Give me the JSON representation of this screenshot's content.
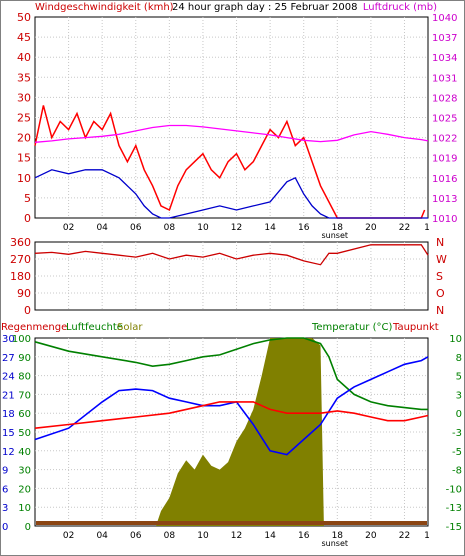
{
  "chart_data": [
    {
      "type": "line",
      "title": "24 hour graph day : 25 Februar 2008",
      "left_label": "Windgeschwindigkeit (kmh)",
      "right_label": "Luftdruck (mb)",
      "x_tick_labels": [
        "02",
        "04",
        "06",
        "08",
        "10",
        "12",
        "14",
        "16",
        "18",
        "20",
        "22"
      ],
      "sunset_label": "sunset",
      "last_tick_label": "1",
      "ylim_left": [
        0,
        50
      ],
      "y_ticks_left": [
        "0",
        "5",
        "10",
        "15",
        "20",
        "25",
        "30",
        "35",
        "40",
        "45",
        "50"
      ],
      "ylim_right": [
        1010,
        1040
      ],
      "y_ticks_right": [
        "1010",
        "1013",
        "1016",
        "1019",
        "1022",
        "1025",
        "1028",
        "1031",
        "1034",
        "1037",
        "1040"
      ],
      "colors": {
        "gust": "#ff0000",
        "wind": "#0000cc",
        "pressure": "#ff00ff"
      },
      "series": [
        {
          "key": "gust",
          "x": [
            0,
            0.5,
            1,
            1.5,
            2,
            2.5,
            3,
            3.5,
            4,
            4.5,
            5,
            5.5,
            6,
            6.5,
            7,
            7.5,
            8,
            8.5,
            9,
            9.5,
            10,
            10.5,
            11,
            11.5,
            12,
            12.5,
            13,
            13.5,
            14,
            14.5,
            15,
            15.5,
            16,
            16.5,
            17,
            17.5,
            18,
            20,
            22,
            23,
            23.2
          ],
          "values": [
            18,
            28,
            20,
            24,
            22,
            26,
            20,
            24,
            22,
            26,
            18,
            14,
            18,
            12,
            8,
            3,
            2,
            8,
            12,
            14,
            16,
            12,
            10,
            14,
            16,
            12,
            14,
            18,
            22,
            20,
            24,
            18,
            20,
            14,
            8,
            4,
            0,
            0,
            0,
            0,
            2
          ]
        },
        {
          "key": "wind",
          "x": [
            0,
            1,
            2,
            3,
            4,
            5,
            6,
            6.5,
            7,
            7.5,
            8,
            9,
            10,
            11,
            12,
            13,
            14,
            15,
            15.5,
            16,
            16.5,
            17,
            17.5,
            18,
            20,
            23.4
          ],
          "values": [
            10,
            12,
            11,
            12,
            12,
            10,
            6,
            3,
            1,
            0,
            0,
            1,
            2,
            3,
            2,
            3,
            4,
            9,
            10,
            6,
            3,
            1,
            0,
            0,
            0,
            0
          ]
        },
        {
          "key": "pressure",
          "x": [
            0,
            1,
            2,
            3,
            4,
            5,
            6,
            7,
            8,
            9,
            10,
            11,
            12,
            13,
            14,
            15,
            16,
            17,
            18,
            19,
            20,
            21,
            22,
            23,
            23.4
          ],
          "values": [
            1021.3,
            1021.5,
            1021.8,
            1022.0,
            1022.2,
            1022.5,
            1023.0,
            1023.5,
            1023.8,
            1023.8,
            1023.6,
            1023.3,
            1023.0,
            1022.7,
            1022.4,
            1022.0,
            1021.6,
            1021.4,
            1021.6,
            1022.4,
            1022.9,
            1022.5,
            1022.0,
            1021.7,
            1021.5
          ]
        }
      ]
    },
    {
      "type": "line",
      "title": "",
      "ylim": [
        0,
        360
      ],
      "y_ticks": [
        "0",
        "90",
        "180",
        "270",
        "360"
      ],
      "direction_labels": [
        "N",
        "W",
        "S",
        "O",
        "N"
      ],
      "x_tick_labels": [
        "02",
        "04",
        "06",
        "08",
        "10",
        "12",
        "14",
        "16",
        "18",
        "20",
        "22"
      ],
      "color": "#cc0000",
      "series": [
        {
          "key": "direction",
          "x": [
            0,
            1,
            2,
            3,
            4,
            5,
            6,
            7,
            8,
            9,
            10,
            11,
            12,
            13,
            14,
            15,
            16,
            17,
            17.5,
            18,
            20,
            23,
            23.4
          ],
          "values": [
            300,
            305,
            295,
            310,
            300,
            290,
            280,
            300,
            270,
            290,
            280,
            300,
            270,
            290,
            300,
            290,
            260,
            240,
            300,
            300,
            345,
            345,
            290
          ]
        }
      ]
    },
    {
      "type": "area",
      "title": "",
      "left_labels": [
        "Regenmenge",
        "Luftfeuchte",
        "Solar"
      ],
      "right_labels": [
        "Temperatur (°C)",
        "Taupunkt"
      ],
      "y_ticks_rain": [
        "0",
        "3",
        "6",
        "9",
        "12",
        "15",
        "18",
        "21",
        "24",
        "27",
        "30"
      ],
      "y_ticks_humidity": [
        "0",
        "10",
        "20",
        "30",
        "40",
        "50",
        "60",
        "70",
        "80",
        "90",
        "100"
      ],
      "ylim_temperature": [
        -15,
        10
      ],
      "y_ticks_temperature": [
        "-15",
        "-13",
        "-10",
        "-8",
        "-5",
        "-3",
        "0",
        "3",
        "5",
        "8",
        "10"
      ],
      "x_tick_labels": [
        "02",
        "04",
        "06",
        "08",
        "10",
        "12",
        "14",
        "16",
        "18",
        "20",
        "22"
      ],
      "sunset_label": "sunset",
      "last_tick_label": "1",
      "colors": {
        "solar": "#808000",
        "rain": "#8b4513",
        "humidity": "#008000",
        "temperature": "#0000ff",
        "dewpoint": "#ff0000"
      },
      "series": [
        {
          "key": "solar",
          "x": [
            0,
            7.2,
            7.5,
            8,
            8.5,
            9,
            9.5,
            10,
            10.5,
            11,
            11.5,
            12,
            12.5,
            13,
            13.5,
            14,
            14.5,
            15,
            15.5,
            16,
            16.5,
            17,
            17.2,
            23.4
          ],
          "values": [
            0,
            0,
            8,
            15,
            28,
            35,
            30,
            38,
            32,
            30,
            34,
            45,
            52,
            62,
            80,
            100,
            100,
            100,
            100,
            100,
            100,
            96,
            0,
            0
          ]
        },
        {
          "key": "rain",
          "x": [
            0,
            23.4
          ],
          "values": [
            0.5,
            0.5
          ]
        },
        {
          "key": "humidity",
          "x": [
            0,
            2,
            4,
            6,
            7,
            8,
            9,
            10,
            11,
            12,
            13,
            14,
            15,
            16,
            17,
            17.5,
            18,
            19,
            20,
            21,
            22,
            23,
            23.4
          ],
          "values": [
            98,
            93,
            90,
            87,
            85,
            86,
            88,
            90,
            91,
            94,
            97,
            99,
            100,
            100,
            97,
            90,
            78,
            70,
            66,
            64,
            63,
            62,
            62
          ]
        },
        {
          "key": "temperature",
          "x": [
            0,
            2,
            4,
            5,
            6,
            7,
            8,
            9,
            10,
            11,
            12,
            13,
            14,
            15,
            16,
            17,
            18,
            19,
            20,
            21,
            22,
            23,
            23.4
          ],
          "values": [
            -3.5,
            -2,
            1.5,
            3.0,
            3.2,
            3.0,
            2.0,
            1.5,
            1.0,
            1.0,
            1.5,
            -1.5,
            -5.0,
            -5.5,
            -3.5,
            -1.5,
            2.0,
            3.5,
            4.5,
            5.5,
            6.5,
            7.0,
            7.5
          ]
        },
        {
          "key": "dewpoint",
          "x": [
            0,
            2,
            4,
            6,
            8,
            10,
            11,
            12,
            13,
            14,
            15,
            16,
            17,
            18,
            19,
            20,
            21,
            22,
            23,
            23.4
          ],
          "values": [
            -2.0,
            -1.5,
            -1.0,
            -0.5,
            0.0,
            1.0,
            1.5,
            1.5,
            1.5,
            0.5,
            0.0,
            0.0,
            0.0,
            0.3,
            0.0,
            -0.5,
            -1.0,
            -1.0,
            -0.5,
            -0.3
          ]
        }
      ]
    }
  ]
}
